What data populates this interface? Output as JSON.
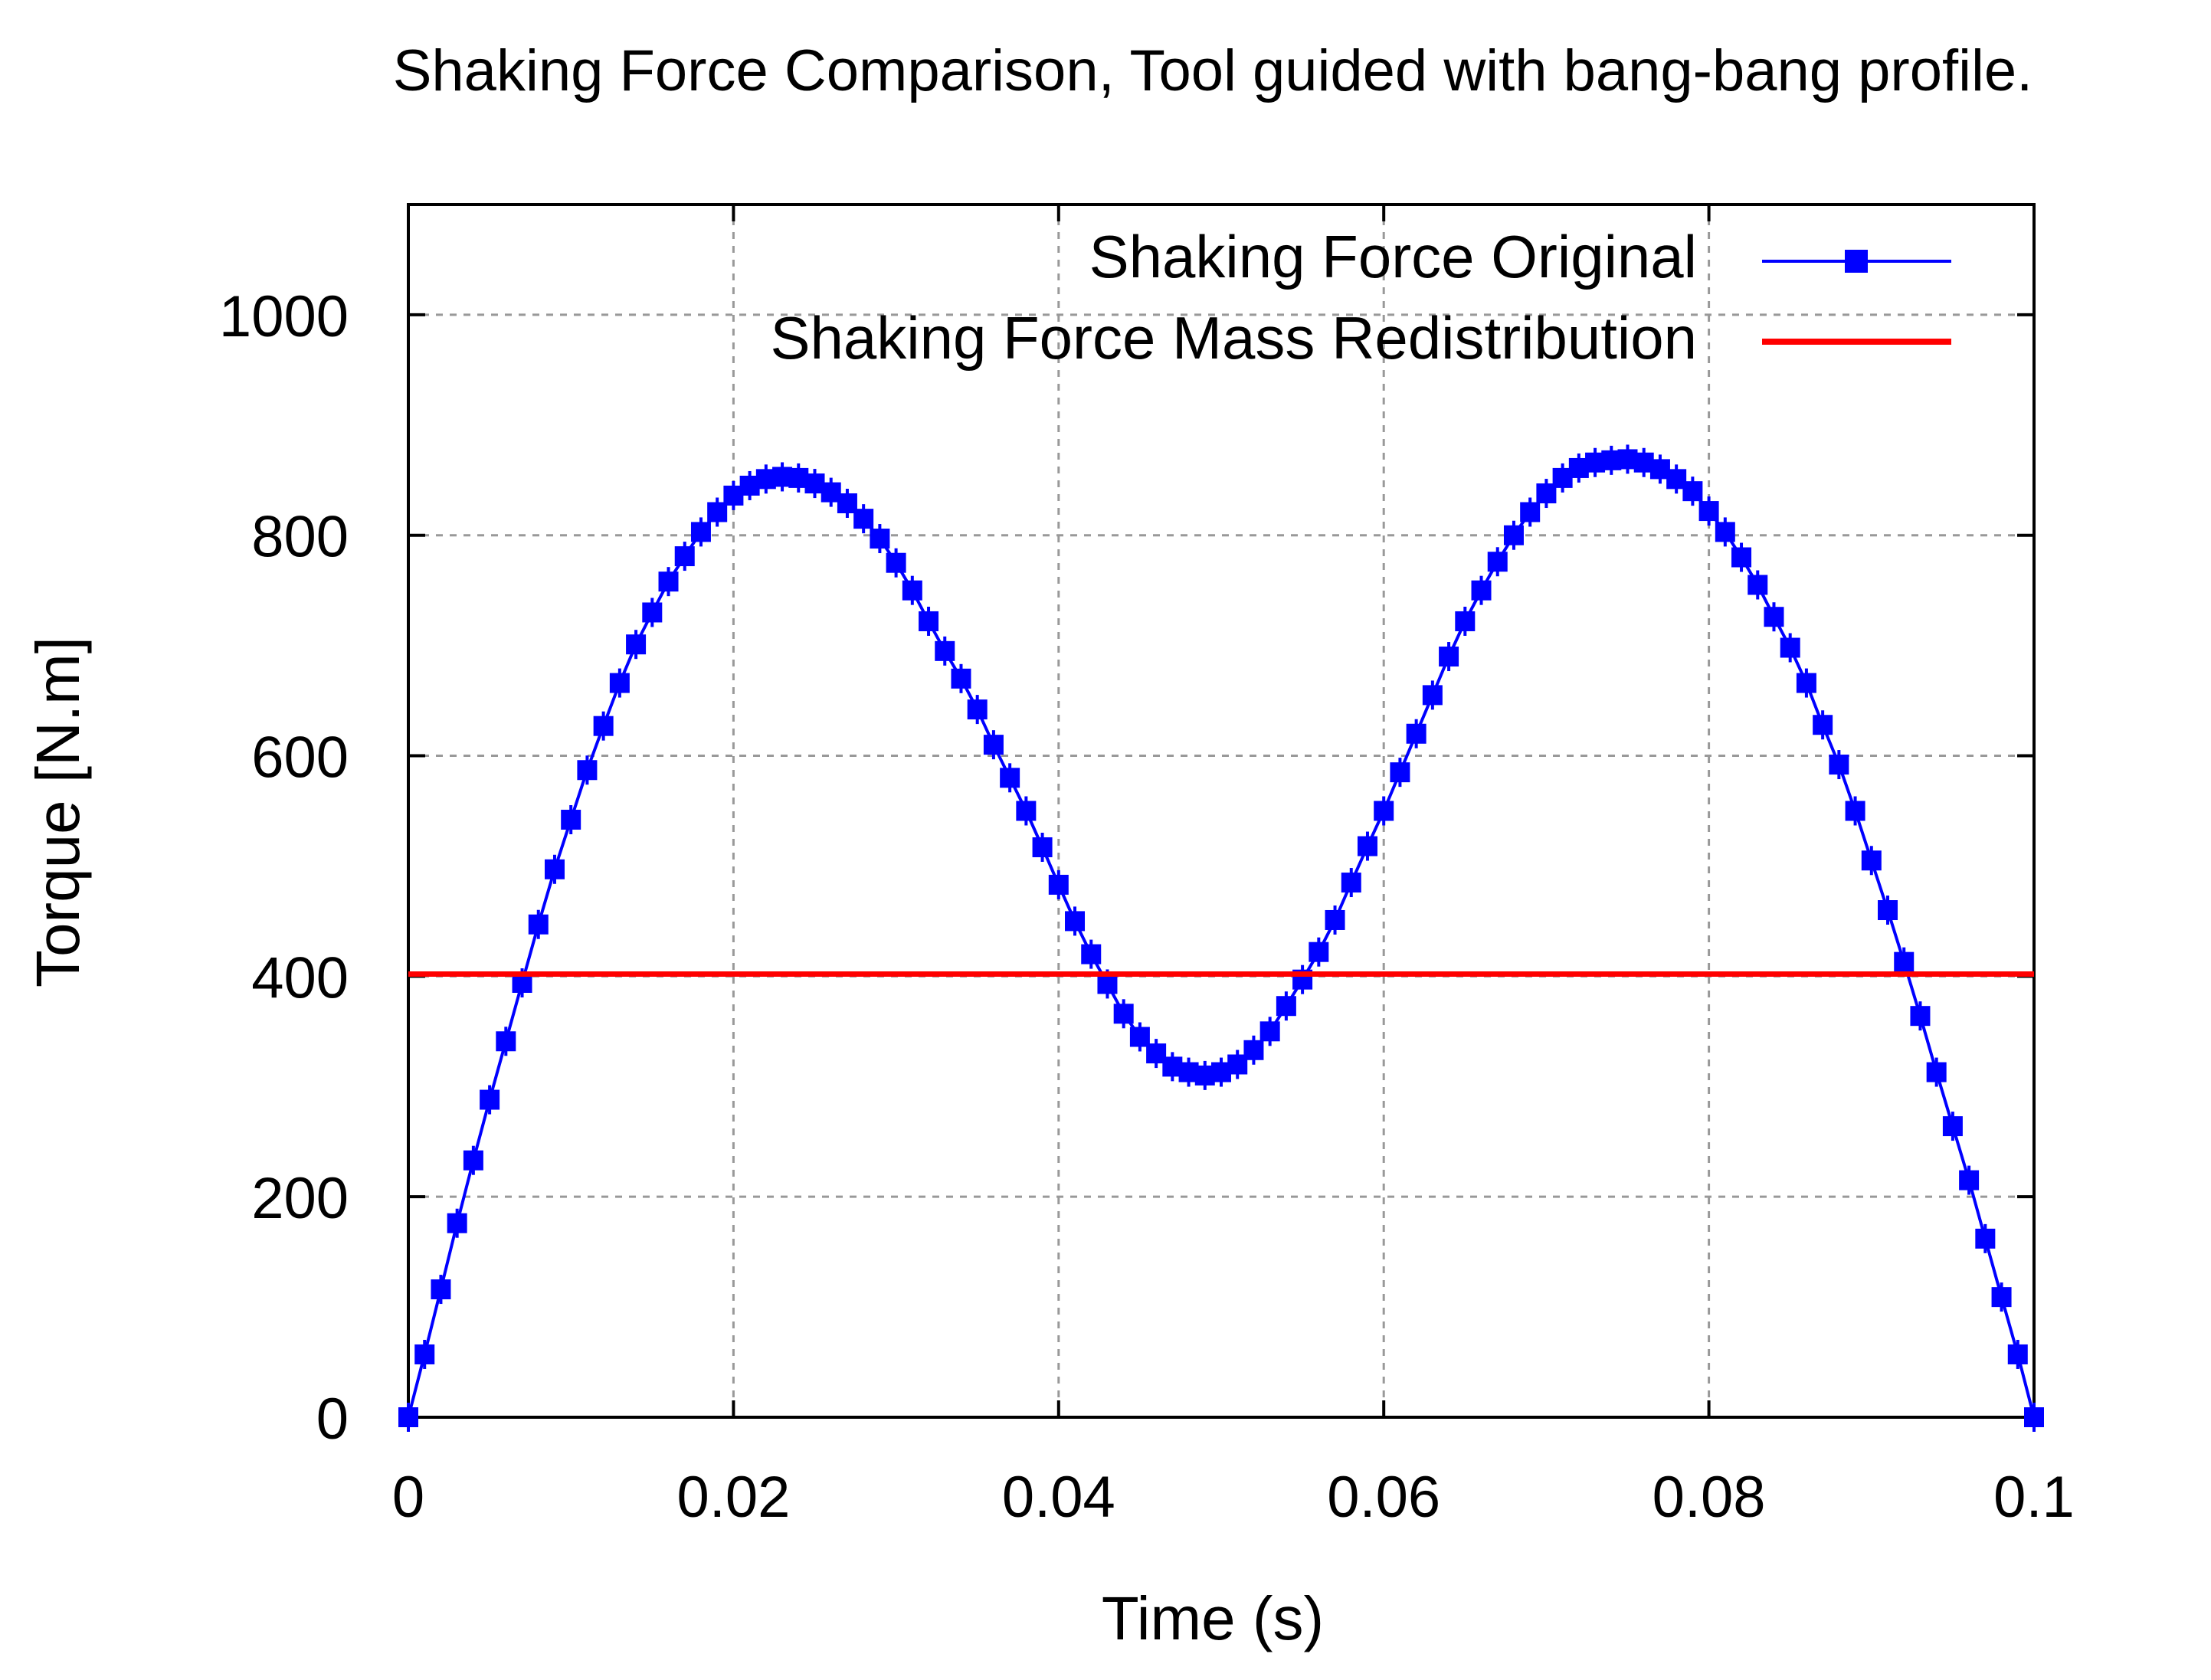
{
  "chart_data": {
    "type": "line",
    "title": "Shaking Force Comparison, Tool guided with bang-bang profile.",
    "xlabel": "Time (s)",
    "ylabel": "Torque [N.m]",
    "xlim": [
      0,
      0.1
    ],
    "ylim": [
      0,
      1100
    ],
    "x_ticks": [
      0,
      0.02,
      0.04,
      0.06,
      0.08,
      0.1
    ],
    "x_tick_labels": [
      "0",
      "0.02",
      "0.04",
      "0.06",
      "0.08",
      "0.1"
    ],
    "y_ticks": [
      0,
      200,
      400,
      600,
      800,
      1000
    ],
    "y_tick_labels": [
      "0",
      "200",
      "400",
      "600",
      "800",
      "1000"
    ],
    "grid": true,
    "legend_position": "top-right",
    "series": [
      {
        "name": "Shaking Force Original",
        "color": "#0000ff",
        "marker": "square",
        "x": [
          0,
          0.001,
          0.002,
          0.003,
          0.004,
          0.005,
          0.006,
          0.007,
          0.008,
          0.009,
          0.01,
          0.011,
          0.012,
          0.013,
          0.014,
          0.015,
          0.016,
          0.017,
          0.018,
          0.019,
          0.02,
          0.021,
          0.022,
          0.023,
          0.024,
          0.025,
          0.026,
          0.027,
          0.028,
          0.029,
          0.03,
          0.031,
          0.032,
          0.033,
          0.034,
          0.035,
          0.036,
          0.037,
          0.038,
          0.039,
          0.04,
          0.041,
          0.042,
          0.043,
          0.044,
          0.045,
          0.046,
          0.047,
          0.048,
          0.049,
          0.05,
          0.051,
          0.052,
          0.053,
          0.054,
          0.055,
          0.056,
          0.057,
          0.058,
          0.059,
          0.06,
          0.061,
          0.062,
          0.063,
          0.064,
          0.065,
          0.066,
          0.067,
          0.068,
          0.069,
          0.07,
          0.071,
          0.072,
          0.073,
          0.074,
          0.075,
          0.076,
          0.077,
          0.078,
          0.079,
          0.08,
          0.081,
          0.082,
          0.083,
          0.084,
          0.085,
          0.086,
          0.087,
          0.088,
          0.089,
          0.09,
          0.091,
          0.092,
          0.093,
          0.094,
          0.095,
          0.096,
          0.097,
          0.098,
          0.099,
          0.1
        ],
        "values": [
          0,
          57,
          116,
          176,
          233,
          288,
          341,
          394,
          447,
          497,
          542,
          587,
          627,
          666,
          701,
          730,
          758,
          781,
          803,
          821,
          836,
          845,
          851,
          853,
          852,
          847,
          839,
          829,
          815,
          797,
          775,
          750,
          722,
          695,
          670,
          642,
          610,
          580,
          550,
          517,
          483,
          450,
          420,
          393,
          366,
          345,
          330,
          318,
          313,
          310,
          313,
          320,
          333,
          350,
          373,
          397,
          422,
          451,
          485,
          518,
          550,
          585,
          620,
          655,
          690,
          722,
          750,
          776,
          800,
          821,
          838,
          852,
          861,
          866,
          868,
          869,
          866,
          860,
          851,
          840,
          822,
          803,
          780,
          755,
          726,
          698,
          666,
          628,
          592,
          550,
          505,
          460,
          413,
          364,
          313,
          264,
          215,
          162,
          109,
          57,
          0
        ]
      },
      {
        "name": "Shaking Force Mass Redistribution",
        "color": "#ff0000",
        "marker": "none",
        "x": [
          0,
          0.1
        ],
        "values": [
          402,
          402
        ]
      }
    ]
  }
}
